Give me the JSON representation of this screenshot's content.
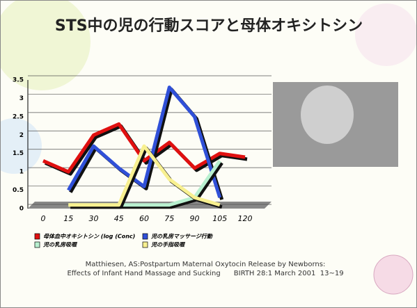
{
  "chart_data": {
    "type": "line",
    "title": "STS中の児の行動スコアと母体オキシトシン",
    "categories": [
      "0",
      "15",
      "30",
      "45",
      "60",
      "75",
      "90",
      "105",
      "120"
    ],
    "series": [
      {
        "name": "母体血中オキシトシン (log (Conc)",
        "color": "#e01010",
        "values": [
          1.3,
          1.0,
          2.0,
          2.3,
          1.3,
          1.8,
          1.1,
          1.5,
          1.4
        ]
      },
      {
        "name": "児の乳房マッサージ行動",
        "color": "#3050d8",
        "values": [
          null,
          0.5,
          1.7,
          1.1,
          0.6,
          3.3,
          2.5,
          0.3,
          null
        ]
      },
      {
        "name": "児の乳房吸啜",
        "color": "#b8f0d0",
        "values": [
          null,
          0.1,
          0.1,
          0.1,
          0.1,
          0.1,
          0.3,
          1.3,
          null
        ]
      },
      {
        "name": "児の手指吸啜",
        "color": "#f8f090",
        "values": [
          null,
          0.1,
          0.1,
          0.1,
          1.7,
          0.8,
          0.3,
          0.1,
          null
        ]
      }
    ],
    "ylim": [
      0,
      3.5
    ],
    "yticks": [
      0,
      0.5,
      1,
      1.5,
      2,
      2.5,
      3,
      3.5
    ],
    "grid": true,
    "citation": [
      "Matthiesen, AS:Postpartum Maternal Oxytocin Release by Newborns:",
      "Effects of Infant Hand Massage and Sucking      BIRTH 28:1 March 2001  13~19"
    ]
  }
}
